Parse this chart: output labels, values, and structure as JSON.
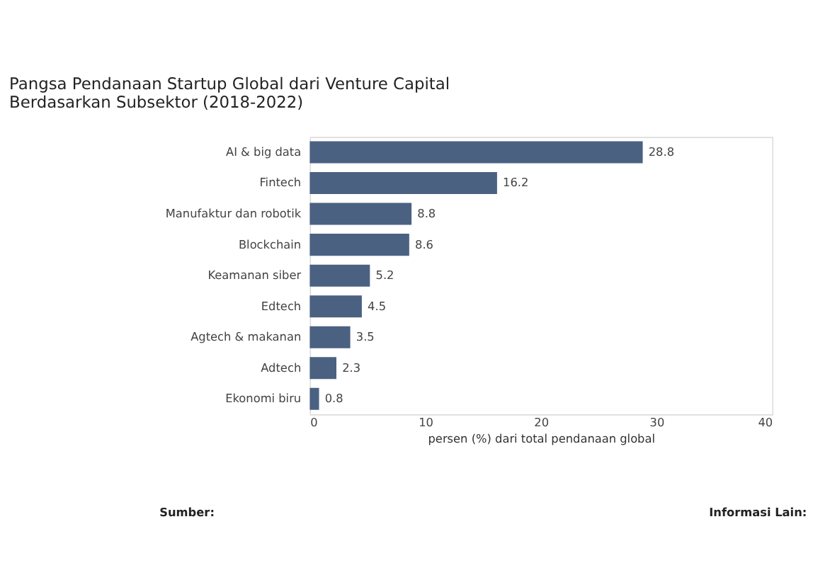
{
  "chart_data": {
    "type": "bar",
    "orientation": "horizontal",
    "title": "Pangsa Pendanaan Startup Global dari Venture Capital Berdasarkan Subsektor (2018-2022)",
    "categories": [
      "AI & big data",
      "Fintech",
      "Manufaktur dan robotik",
      "Blockchain",
      "Keamanan siber",
      "Edtech",
      "Agtech & makanan",
      "Adtech",
      "Ekonomi biru"
    ],
    "values": [
      28.8,
      16.2,
      8.8,
      8.6,
      5.2,
      4.5,
      3.5,
      2.3,
      0.8
    ],
    "color": "#4b6182",
    "xlabel": "persen (%) dari total pendanaan global",
    "xlim": [
      0,
      40
    ],
    "xticks": [
      0,
      10,
      20,
      30,
      40
    ],
    "data_labels": true,
    "grid": false,
    "annotations": [
      "Sumber:",
      "Informasi Lain:"
    ]
  }
}
